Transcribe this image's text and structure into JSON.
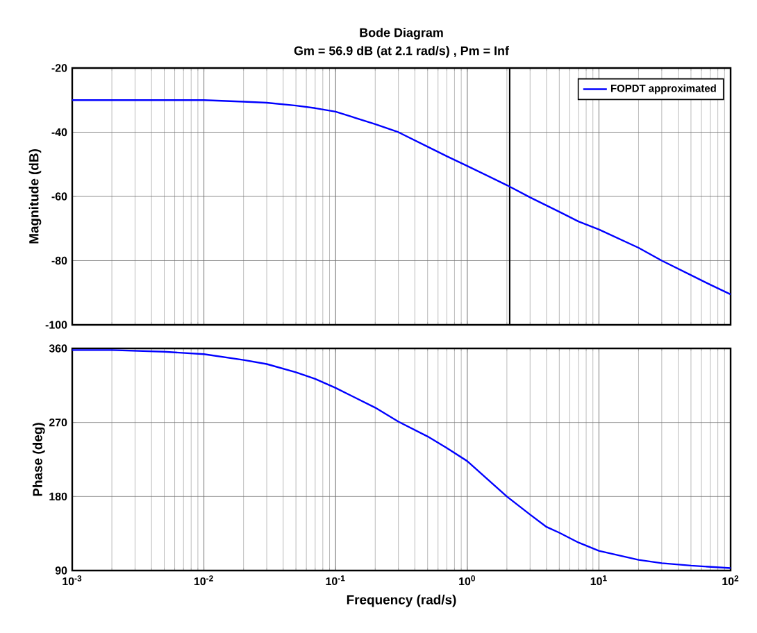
{
  "chart_data": [
    {
      "type": "line",
      "title": "Bode Diagram",
      "subtitle": "Gm = 56.9 dB (at 2.1 rad/s) ,  Pm = Inf",
      "ylabel": "Magnitude (dB)",
      "log": "x",
      "grid": true,
      "legend": "top right",
      "tick_labels": "y",
      "xlim": [
        0.001,
        100
      ],
      "xticks": [
        0.001,
        0.01,
        0.1,
        1,
        10,
        100
      ],
      "ylim": [
        -100,
        -20
      ],
      "yticks": [
        -100,
        -80,
        -60,
        -40,
        -20
      ],
      "ref_lines": [
        {
          "axis": "x",
          "value": 2.1,
          "color": "#000000"
        }
      ],
      "series": [
        {
          "name": "FOPDT approximated",
          "color": "#0000ff",
          "x": [
            0.001,
            0.003,
            0.01,
            0.02,
            0.03,
            0.05,
            0.07,
            0.1,
            0.2,
            0.3,
            0.5,
            0.7,
            1,
            2,
            3,
            5,
            7,
            10,
            20,
            30,
            50,
            70,
            100
          ],
          "values": [
            -30,
            -30,
            -30,
            -30.5,
            -30.8,
            -31.7,
            -32.5,
            -33.6,
            -37.5,
            -40,
            -44.5,
            -47.5,
            -50.5,
            -56.5,
            -60.3,
            -64.8,
            -67.8,
            -70.3,
            -76,
            -80,
            -84.5,
            -87.5,
            -90.5
          ]
        }
      ]
    },
    {
      "type": "line",
      "xlabel": "Frequency  (rad/s)",
      "ylabel": "Phase (deg)",
      "log": "x",
      "grid": true,
      "xlim": [
        0.001,
        100
      ],
      "xticks": [
        {
          "value": 0.001,
          "label": "10$^{-3}$"
        },
        {
          "value": 0.01,
          "label": "10$^{-2}$"
        },
        {
          "value": 0.1,
          "label": "10$^{-1}$"
        },
        {
          "value": 1,
          "label": "10$^{0}$"
        },
        {
          "value": 10,
          "label": "10$^{1}$"
        },
        {
          "value": 100,
          "label": "10$^{2}$"
        }
      ],
      "ylim": [
        90,
        360
      ],
      "yticks": [
        90,
        180,
        270,
        360
      ],
      "series": [
        {
          "color": "#0000ff",
          "x": [
            0.001,
            0.002,
            0.005,
            0.01,
            0.02,
            0.03,
            0.05,
            0.07,
            0.1,
            0.2,
            0.3,
            0.5,
            0.7,
            1,
            2,
            3,
            4,
            5,
            7,
            10,
            20,
            30,
            50,
            100
          ],
          "values": [
            358,
            358,
            356,
            353,
            346,
            341,
            331,
            323,
            312,
            288,
            271,
            253,
            239,
            223,
            180,
            158,
            143,
            136,
            124,
            114,
            103,
            99,
            96,
            93
          ]
        }
      ]
    }
  ]
}
